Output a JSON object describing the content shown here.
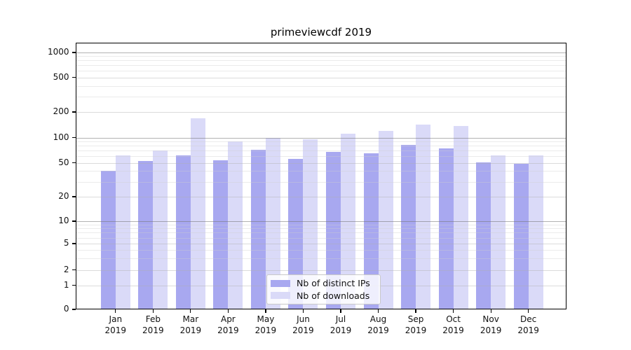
{
  "chart_data": {
    "type": "bar",
    "title": "primeviewcdf 2019",
    "x_categories": [
      "Jan",
      "Feb",
      "Mar",
      "Apr",
      "May",
      "Jun",
      "Jul",
      "Aug",
      "Sep",
      "Oct",
      "Nov",
      "Dec"
    ],
    "x_category_year": "2019",
    "series": [
      {
        "name": "Nb of distinct IPs",
        "color": "#a8a8f0",
        "values": [
          40,
          53,
          62,
          54,
          71,
          56,
          67,
          65,
          82,
          75,
          51,
          49
        ]
      },
      {
        "name": "Nb of downloads",
        "color": "#dadaf8",
        "values": [
          62,
          70,
          170,
          91,
          100,
          95,
          112,
          120,
          143,
          137,
          62,
          62
        ]
      }
    ],
    "yscale": "symlog",
    "ylim": [
      0,
      1000
    ],
    "y_ticks": [
      0,
      1,
      2,
      5,
      10,
      20,
      50,
      100,
      200,
      500,
      1000
    ],
    "y_major_gridlines": [
      10,
      100,
      1000
    ],
    "y_minor_gridlines": [
      3,
      4,
      6,
      7,
      8,
      9,
      30,
      40,
      60,
      70,
      80,
      90,
      300,
      400,
      600,
      700,
      800,
      900
    ],
    "grid": "on",
    "legend_position": "inside lower center"
  },
  "colors": {
    "grid_major": "rgba(115,115,115,0.55)",
    "grid_labeled": "rgba(175,175,175,0.45)",
    "grid_minor": "rgba(205,205,205,0.40)",
    "axis": "#000000",
    "background": "#ffffff"
  }
}
